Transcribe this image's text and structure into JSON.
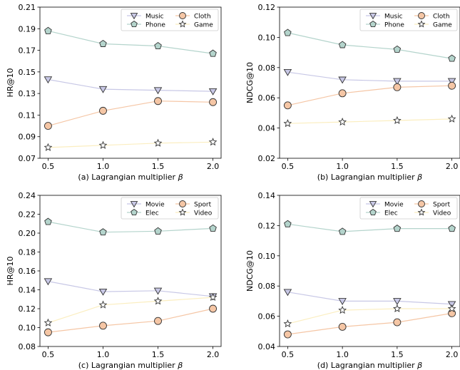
{
  "styles": {
    "triangle": {
      "line": "#c8c8e6",
      "fill": "#c8c8e6",
      "edge": "#333333"
    },
    "pentagon": {
      "line": "#b4d4cc",
      "fill": "#b4d4cc",
      "edge": "#333333"
    },
    "circle": {
      "line": "#f5c6a5",
      "fill": "#f5c6a5",
      "edge": "#333333"
    },
    "star": {
      "line": "#fbeec0",
      "fill": "#ffffff",
      "edge": "#333333"
    }
  },
  "chart_data": [
    {
      "type": "line",
      "caption_prefix": "(a) Lagrangian multiplier",
      "caption_symbol": "β",
      "ylabel": "HR@10",
      "x": [
        0.5,
        1.0,
        1.5,
        2.0
      ],
      "x_ticks": [
        "0.5",
        "1.0",
        "1.5",
        "2.0"
      ],
      "ylim": [
        0.07,
        0.21
      ],
      "y_ticks": [
        "0.07",
        "0.09",
        "0.11",
        "0.13",
        "0.15",
        "0.17",
        "0.19",
        "0.21"
      ],
      "legend_loc": "top-right",
      "series": [
        {
          "name": "Music",
          "marker": "triangle",
          "values": [
            0.143,
            0.134,
            0.133,
            0.132
          ]
        },
        {
          "name": "Cloth",
          "marker": "circle",
          "values": [
            0.1,
            0.114,
            0.123,
            0.122
          ]
        },
        {
          "name": "Phone",
          "marker": "pentagon",
          "values": [
            0.188,
            0.176,
            0.174,
            0.167
          ]
        },
        {
          "name": "Game",
          "marker": "star",
          "values": [
            0.08,
            0.082,
            0.084,
            0.085
          ]
        }
      ]
    },
    {
      "type": "line",
      "caption_prefix": "(b) Lagrangian multiplier",
      "caption_symbol": "β",
      "ylabel": "NDCG@10",
      "x": [
        0.5,
        1.0,
        1.5,
        2.0
      ],
      "x_ticks": [
        "0.5",
        "1.0",
        "1.5",
        "2.0"
      ],
      "ylim": [
        0.02,
        0.12
      ],
      "y_ticks": [
        "0.02",
        "0.04",
        "0.06",
        "0.08",
        "0.10",
        "0.12"
      ],
      "legend_loc": "top-right",
      "series": [
        {
          "name": "Music",
          "marker": "triangle",
          "values": [
            0.077,
            0.072,
            0.071,
            0.071
          ]
        },
        {
          "name": "Cloth",
          "marker": "circle",
          "values": [
            0.055,
            0.063,
            0.067,
            0.068
          ]
        },
        {
          "name": "Phone",
          "marker": "pentagon",
          "values": [
            0.103,
            0.095,
            0.092,
            0.086
          ]
        },
        {
          "name": "Game",
          "marker": "star",
          "values": [
            0.043,
            0.044,
            0.045,
            0.046
          ]
        }
      ]
    },
    {
      "type": "line",
      "caption_prefix": "(c) Lagrangian multiplier",
      "caption_symbol": "β",
      "ylabel": "HR@10",
      "x": [
        0.5,
        1.0,
        1.5,
        2.0
      ],
      "x_ticks": [
        "0.5",
        "1.0",
        "1.5",
        "2.0"
      ],
      "ylim": [
        0.08,
        0.24
      ],
      "y_ticks": [
        "0.08",
        "0.10",
        "0.12",
        "0.14",
        "0.16",
        "0.18",
        "0.20",
        "0.22",
        "0.24"
      ],
      "legend_loc": "top-right",
      "series": [
        {
          "name": "Movie",
          "marker": "triangle",
          "values": [
            0.149,
            0.138,
            0.139,
            0.133
          ]
        },
        {
          "name": "Sport",
          "marker": "circle",
          "values": [
            0.095,
            0.102,
            0.107,
            0.12
          ]
        },
        {
          "name": "Elec",
          "marker": "pentagon",
          "values": [
            0.212,
            0.201,
            0.202,
            0.205
          ]
        },
        {
          "name": "Video",
          "marker": "star",
          "values": [
            0.105,
            0.124,
            0.128,
            0.132
          ]
        }
      ]
    },
    {
      "type": "line",
      "caption_prefix": "(d) Lagrangian multiplier",
      "caption_symbol": "β",
      "ylabel": "NDCG@10",
      "x": [
        0.5,
        1.0,
        1.5,
        2.0
      ],
      "x_ticks": [
        "0.5",
        "1.0",
        "1.5",
        "2.0"
      ],
      "ylim": [
        0.04,
        0.14
      ],
      "y_ticks": [
        "0.04",
        "0.06",
        "0.08",
        "0.10",
        "0.12",
        "0.14"
      ],
      "legend_loc": "top-right",
      "series": [
        {
          "name": "Movie",
          "marker": "triangle",
          "values": [
            0.076,
            0.07,
            0.07,
            0.068
          ]
        },
        {
          "name": "Sport",
          "marker": "circle",
          "values": [
            0.048,
            0.053,
            0.056,
            0.062
          ]
        },
        {
          "name": "Elec",
          "marker": "pentagon",
          "values": [
            0.121,
            0.116,
            0.118,
            0.118
          ]
        },
        {
          "name": "Video",
          "marker": "star",
          "values": [
            0.055,
            0.064,
            0.065,
            0.065
          ]
        }
      ]
    }
  ]
}
